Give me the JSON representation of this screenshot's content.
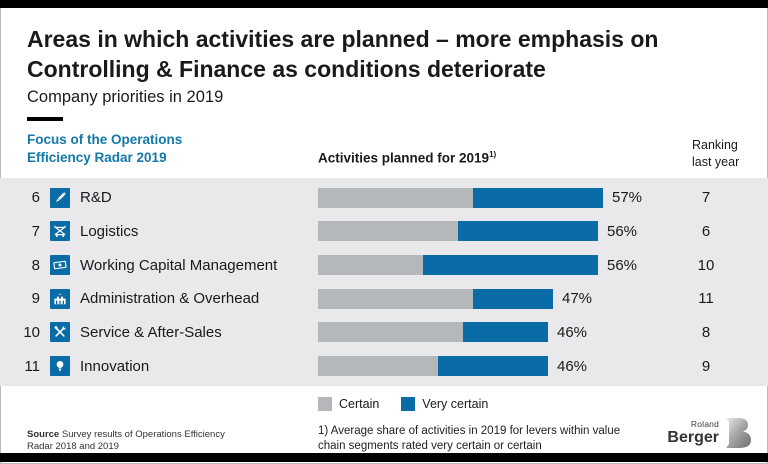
{
  "header": {
    "title": "Areas in which activities are planned – more emphasis on Controlling & Finance as conditions deteriorate",
    "subtitle": "Company priorities in 2019"
  },
  "columns": {
    "focus": "Focus of the Operations Efficiency Radar 2019",
    "activities": "Activities planned for 2019",
    "activities_footnote_marker": "1)",
    "ranking": "Ranking last year"
  },
  "table": {
    "rows": [
      {
        "rank": 6,
        "icon": "pencil-icon",
        "label": "R&D",
        "certain": 31,
        "very_certain": 26,
        "total_label": "57%",
        "last_year": 7
      },
      {
        "rank": 7,
        "icon": "forklift-icon",
        "label": "Logistics",
        "certain": 28,
        "very_certain": 28,
        "total_label": "56%",
        "last_year": 6
      },
      {
        "rank": 8,
        "icon": "banknote-icon",
        "label": "Working Capital Management",
        "certain": 21,
        "very_certain": 35,
        "total_label": "56%",
        "last_year": 10
      },
      {
        "rank": 9,
        "icon": "building-icon",
        "label": "Administration & Overhead",
        "certain": 31,
        "very_certain": 16,
        "total_label": "47%",
        "last_year": 11
      },
      {
        "rank": 10,
        "icon": "tools-icon",
        "label": "Service & After-Sales",
        "certain": 29,
        "very_certain": 17,
        "total_label": "46%",
        "last_year": 8
      },
      {
        "rank": 11,
        "icon": "lightbulb-icon",
        "label": "Innovation",
        "certain": 24,
        "very_certain": 22,
        "total_label": "46%",
        "last_year": 9
      }
    ]
  },
  "legend": {
    "certain": "Certain",
    "very_certain": "Very certain"
  },
  "footnote": {
    "text": "1) Average share of activities in 2019 for levers within value chain segments rated very certain or certain"
  },
  "source": {
    "label": "Source",
    "text": "Survey results of Operations Efficiency Radar 2018 and 2019"
  },
  "logo": {
    "line1": "Roland",
    "line2": "Berger"
  },
  "colors": {
    "accent_blue": "#0a6ca6",
    "heading_blue": "#1478a8",
    "bar_gray": "#b4b8bb",
    "band_bg": "#e9e9eb",
    "black_bar": "#000000"
  },
  "chart_data": {
    "type": "bar",
    "orientation": "horizontal",
    "stacked": true,
    "title": "Activities planned for 2019",
    "categories": [
      "R&D",
      "Logistics",
      "Working Capital Management",
      "Administration & Overhead",
      "Service & After-Sales",
      "Innovation"
    ],
    "series": [
      {
        "name": "Certain",
        "color": "#b4b8bb",
        "values": [
          31,
          28,
          21,
          31,
          29,
          24
        ]
      },
      {
        "name": "Very certain",
        "color": "#0a6ca6",
        "values": [
          26,
          28,
          35,
          16,
          17,
          22
        ]
      }
    ],
    "totals_pct": [
      57,
      56,
      56,
      47,
      46,
      46
    ],
    "rank_2019": [
      6,
      7,
      8,
      9,
      10,
      11
    ],
    "rank_last_year": [
      7,
      6,
      10,
      11,
      8,
      9
    ],
    "value_unit": "%",
    "xlim": [
      0,
      60
    ],
    "grid": false,
    "legend_position": "bottom"
  }
}
